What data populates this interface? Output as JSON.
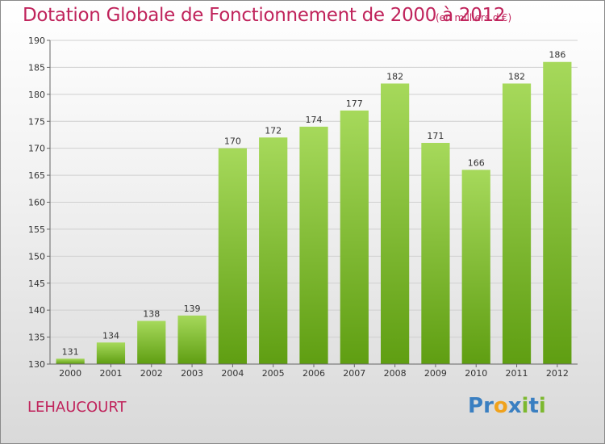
{
  "title": "Dotation Globale de Fonctionnement de 2000 à 2012",
  "unit_note": "(en milliers d'€)",
  "commune": "LEHAUCOURT",
  "logo": {
    "text": "Proxiti",
    "letters": [
      "P",
      "r",
      "o",
      "x",
      "i",
      "t",
      "i"
    ],
    "colors": [
      "#3a7fc1",
      "#3a7fc1",
      "#f0a21c",
      "#3a7fc1",
      "#7cb82f",
      "#3a7fc1",
      "#7cb82f"
    ]
  },
  "colors": {
    "title": "#c0245c",
    "bar_top": "#a6d95b",
    "bar_bottom": "#5f9e12",
    "grid": "#cfcfcf"
  },
  "chart_data": {
    "type": "bar",
    "title": "Dotation Globale de Fonctionnement de 2000 à 2012",
    "subtitle": "(en milliers d'€)",
    "categories": [
      "2000",
      "2001",
      "2002",
      "2003",
      "2004",
      "2005",
      "2006",
      "2007",
      "2008",
      "2009",
      "2010",
      "2011",
      "2012"
    ],
    "values": [
      131,
      134,
      138,
      139,
      170,
      172,
      174,
      177,
      182,
      171,
      166,
      182,
      186
    ],
    "ylim": [
      130,
      190
    ],
    "yticks": [
      130,
      135,
      140,
      145,
      150,
      155,
      160,
      165,
      170,
      175,
      180,
      185,
      190
    ],
    "grid": true,
    "xlabel": "",
    "ylabel": ""
  }
}
